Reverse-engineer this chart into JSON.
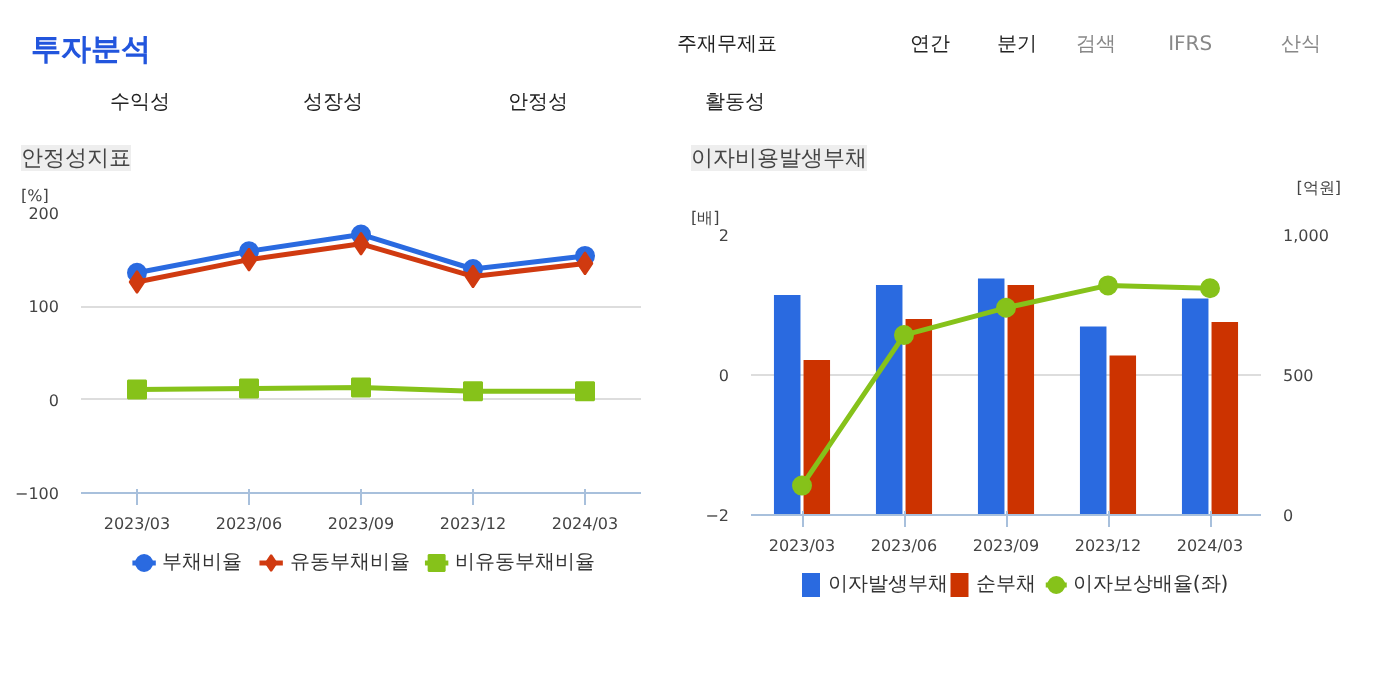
{
  "chart_data": [
    {
      "type": "other",
      "annotations": [
        "투자분석",
        "주재무제표",
        "연간",
        "분기",
        "검색",
        "IFRS",
        "산식",
        "수익성",
        "성장성",
        "안정성",
        "활동성"
      ]
    },
    {
      "type": "line",
      "title": "안정성지표",
      "ylabel": "[%]",
      "categories": [
        "2023/03",
        "2023/06",
        "2023/09",
        "2023/12",
        "2024/03"
      ],
      "ylim": [
        -100,
        200
      ],
      "yticks": [
        -100,
        0,
        100,
        200
      ],
      "grid": "y",
      "legend": "bottom",
      "series": [
        {
          "name": "부채비율",
          "color": "#2a6ae0",
          "marker": "circle",
          "values": [
            136,
            159,
            177,
            140,
            154
          ]
        },
        {
          "name": "유동부채비율",
          "color": "#d03a10",
          "marker": "diamond",
          "values": [
            126,
            150,
            167,
            132,
            146
          ]
        },
        {
          "name": "비유동부채비율",
          "color": "#86c21a",
          "marker": "square",
          "values": [
            11,
            12,
            13,
            9,
            9
          ]
        }
      ]
    },
    {
      "type": "bar",
      "title": "이자비용발생부채",
      "ylabel": "[배]",
      "y2label": "[억원]",
      "categories": [
        "2023/03",
        "2023/06",
        "2023/09",
        "2023/12",
        "2024/03"
      ],
      "ylim": [
        -2,
        2
      ],
      "yticks": [
        -2,
        0,
        2
      ],
      "y2lim": [
        0,
        1000
      ],
      "y2ticks": [
        0,
        500,
        {
          "value": 1000,
          "label": "1,000"
        }
      ],
      "grid": "y",
      "legend": "bottom",
      "series": [
        {
          "name": "이자발생부채",
          "type": "bar",
          "axis": "y2",
          "color": "#2a6ae0",
          "values": [
            786,
            821,
            845,
            673,
            773
          ]
        },
        {
          "name": "순부채",
          "type": "bar",
          "axis": "y2",
          "color": "#cc3300",
          "values": [
            554,
            700,
            821,
            570,
            689
          ]
        },
        {
          "name": "이자보상배율(좌)",
          "type": "line",
          "axis": "y",
          "marker": "circle",
          "color": "#86c21a",
          "values": [
            -1.58,
            0.57,
            0.96,
            1.28,
            1.24
          ]
        }
      ]
    }
  ]
}
